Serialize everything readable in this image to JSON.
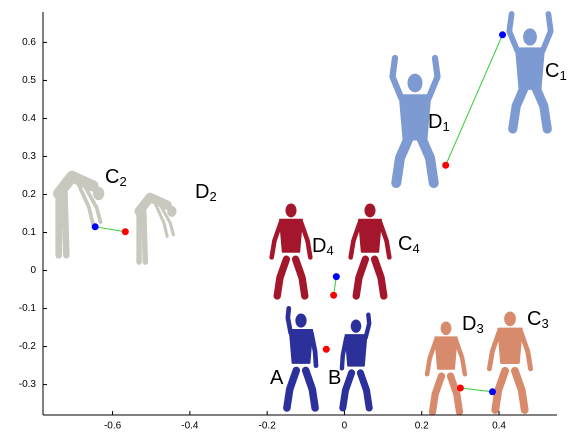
{
  "chart_data": {
    "type": "scatter",
    "xlim": [
      -0.78,
      0.55
    ],
    "ylim": [
      -0.38,
      0.68
    ],
    "xticks": [
      -0.6,
      -0.4,
      -0.2,
      0,
      0.2,
      0.4
    ],
    "yticks": [
      -0.3,
      -0.2,
      -0.1,
      0,
      0.1,
      0.2,
      0.3,
      0.4,
      0.5,
      0.6
    ],
    "point_colors": [
      "#0000ff",
      "#ff0000"
    ],
    "line_color": "#33cc33",
    "segments": [
      {
        "x": [
          0.409,
          0.262
        ],
        "y": [
          0.62,
          0.277
        ]
      },
      {
        "x": [
          -0.645,
          -0.567
        ],
        "y": [
          0.115,
          0.102
        ]
      },
      {
        "x": [
          -0.021,
          -0.028
        ],
        "y": [
          -0.016,
          -0.065
        ]
      },
      {
        "x": [
          0.383,
          0.3
        ],
        "y": [
          -0.319,
          -0.309
        ]
      }
    ],
    "points": {
      "color": "#ff0000",
      "x": [
        -0.047
      ],
      "y": [
        -0.207
      ]
    },
    "annotations": [
      {
        "letter": "C",
        "index": "1"
      },
      {
        "letter": "D",
        "index": "1"
      },
      {
        "letter": "C",
        "index": "2"
      },
      {
        "letter": "D",
        "index": "2"
      },
      {
        "letter": "D",
        "index": "4"
      },
      {
        "letter": "C",
        "index": "4"
      },
      {
        "letter": "A"
      },
      {
        "letter": "B"
      },
      {
        "letter": "D",
        "index": "3"
      },
      {
        "letter": "C",
        "index": "3"
      }
    ]
  }
}
